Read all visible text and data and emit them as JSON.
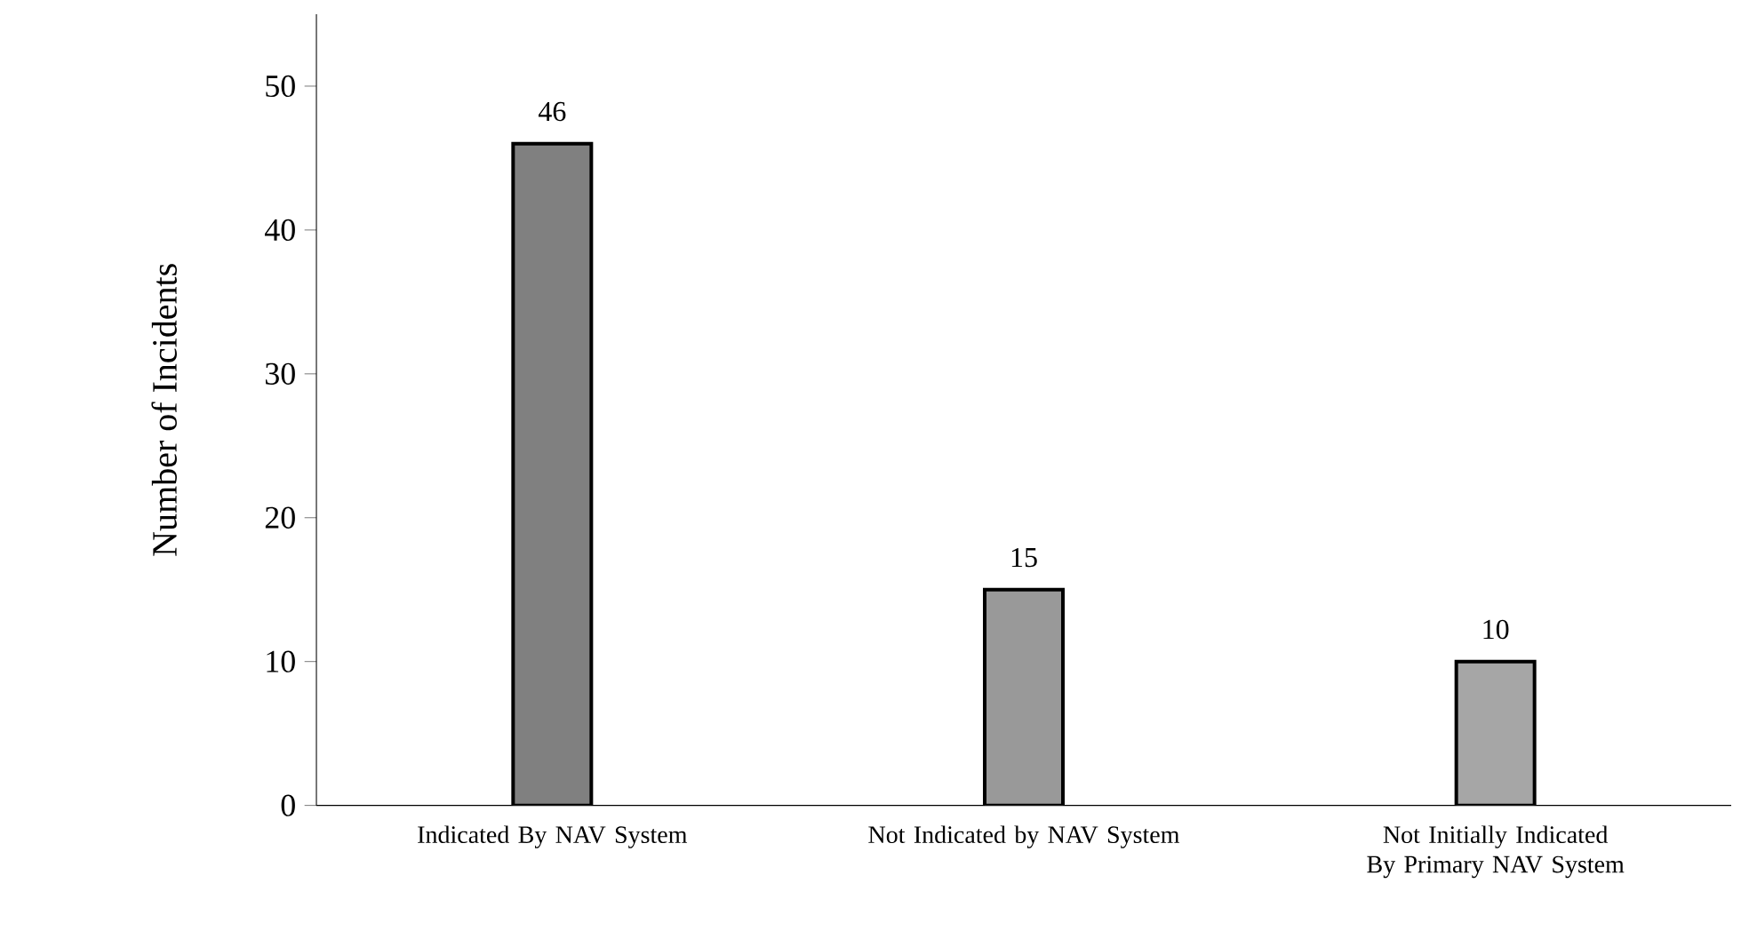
{
  "chart_data": {
    "type": "bar",
    "ylabel": "Number of Incidents",
    "categories": [
      "Indicated By NAV System",
      "Not Indicated by NAV System",
      "Not Initially Indicated By Primary NAV System"
    ],
    "values": [
      46,
      15,
      10
    ],
    "colors": [
      "#808080",
      "#999999",
      "#a6a6a6"
    ],
    "ylim": [
      0,
      55
    ],
    "yticks": [
      0,
      10,
      20,
      30,
      40,
      50
    ],
    "grid": false,
    "data_labels": true
  }
}
